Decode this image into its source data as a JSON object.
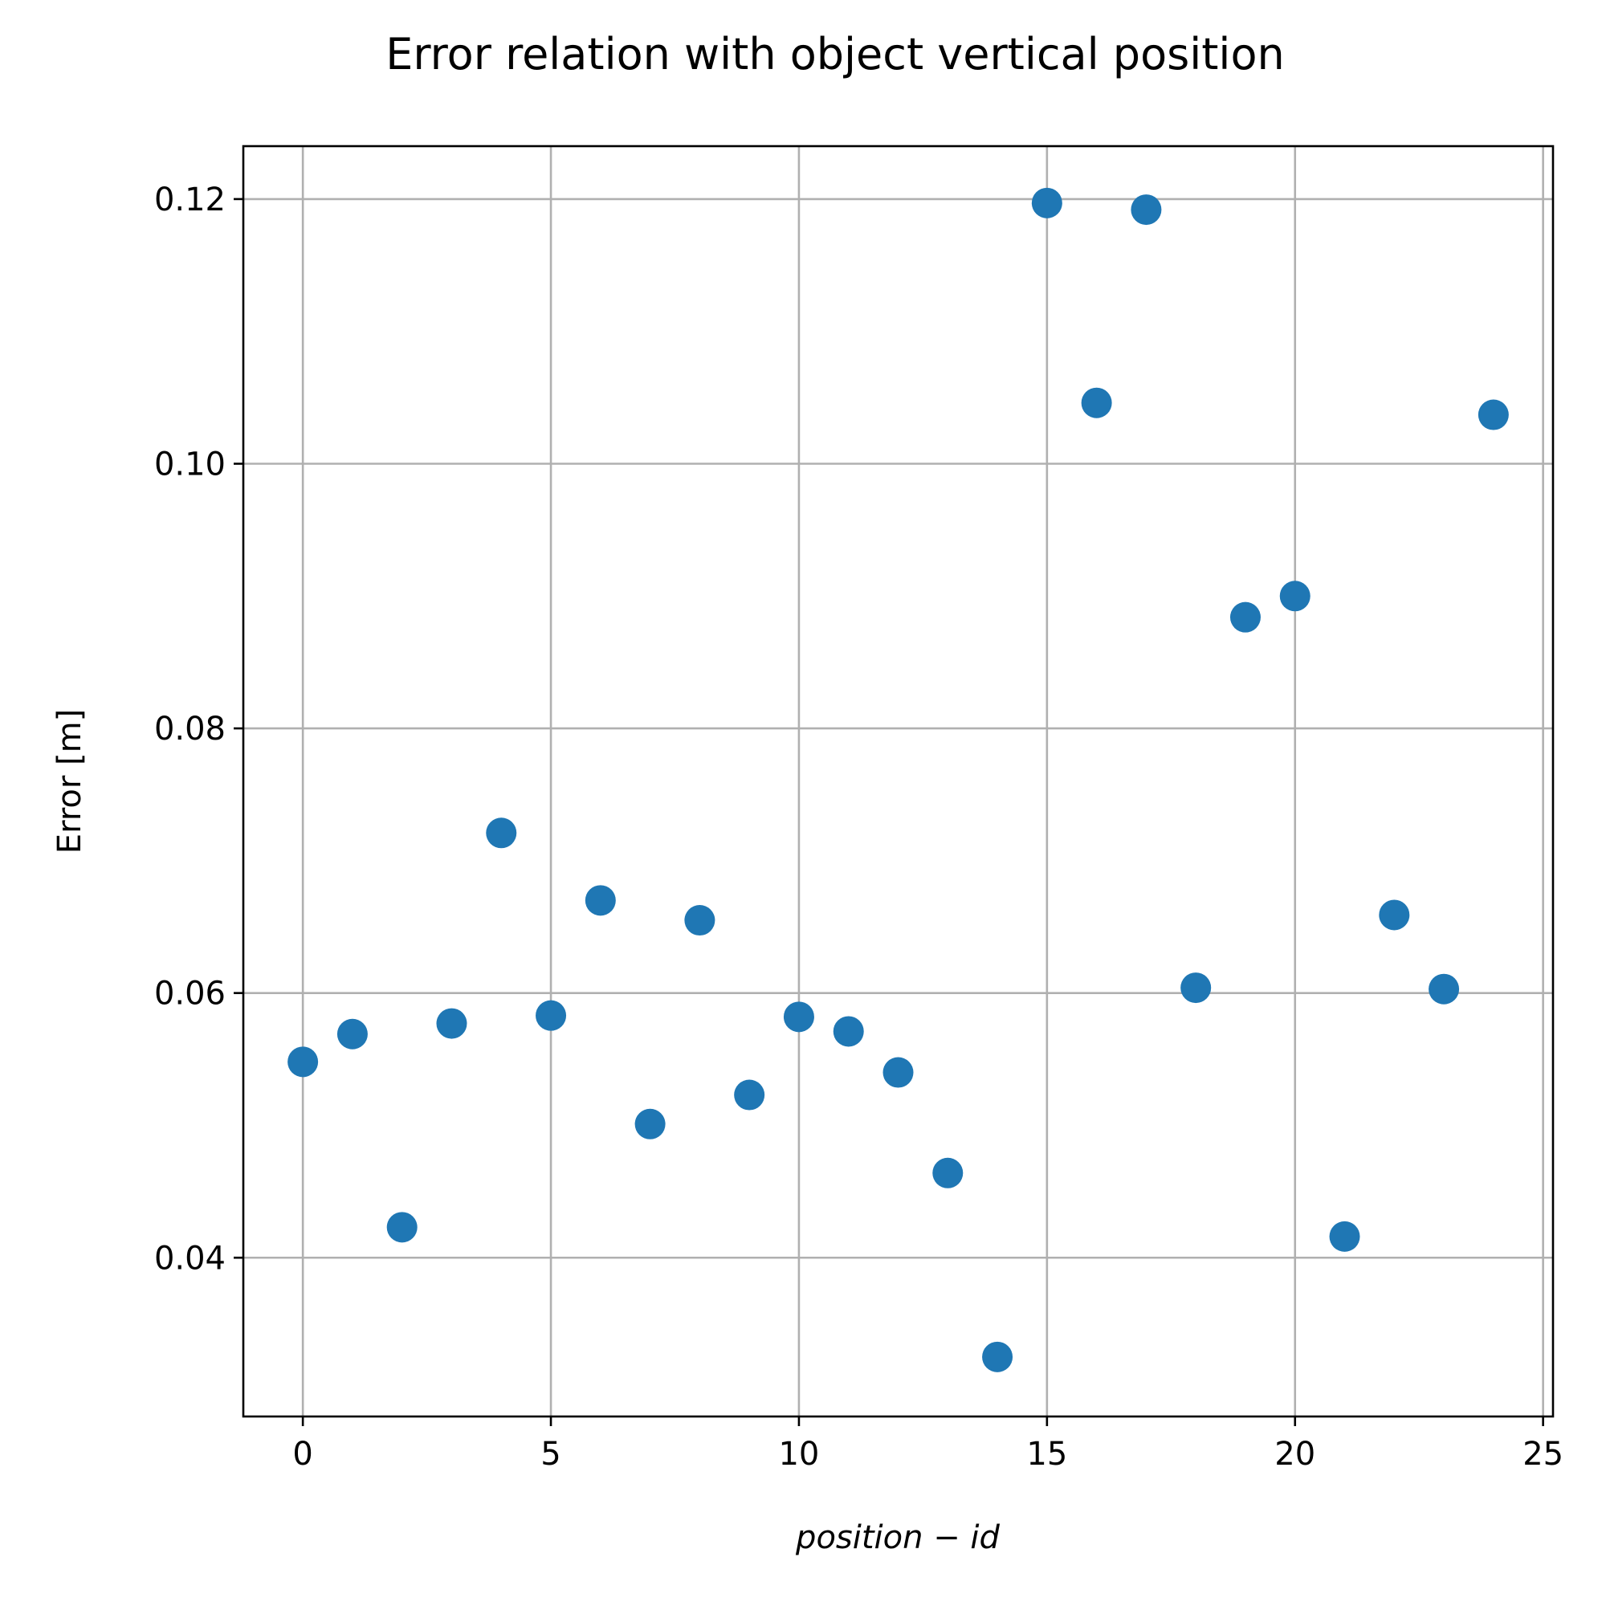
{
  "chart_data": {
    "type": "scatter",
    "title": "Error relation with object vertical position",
    "xlabel": "position − id",
    "ylabel": "Error [m]",
    "xlim": [
      -1.2,
      25.2
    ],
    "ylim": [
      0.028,
      0.124
    ],
    "xticks": [
      0,
      5,
      10,
      15,
      20,
      25
    ],
    "xtick_labels": [
      "0",
      "5",
      "10",
      "15",
      "20",
      "25"
    ],
    "yticks": [
      0.04,
      0.06,
      0.08,
      0.1,
      0.12
    ],
    "ytick_labels": [
      "0.04",
      "0.06",
      "0.08",
      "0.10",
      "0.12"
    ],
    "grid": true,
    "marker_color": "#1f77b4",
    "x": [
      0,
      1,
      2,
      3,
      4,
      5,
      6,
      7,
      8,
      9,
      10,
      11,
      12,
      13,
      14,
      15,
      16,
      17,
      18,
      19,
      20,
      21,
      22,
      23,
      24
    ],
    "y": [
      0.0548,
      0.0569,
      0.0423,
      0.0577,
      0.0721,
      0.0583,
      0.067,
      0.0501,
      0.0655,
      0.0523,
      0.0582,
      0.0571,
      0.054,
      0.0464,
      0.0325,
      0.1197,
      0.1046,
      0.1192,
      0.0604,
      0.0884,
      0.09,
      0.0416,
      0.0659,
      0.0603,
      0.1037
    ]
  }
}
